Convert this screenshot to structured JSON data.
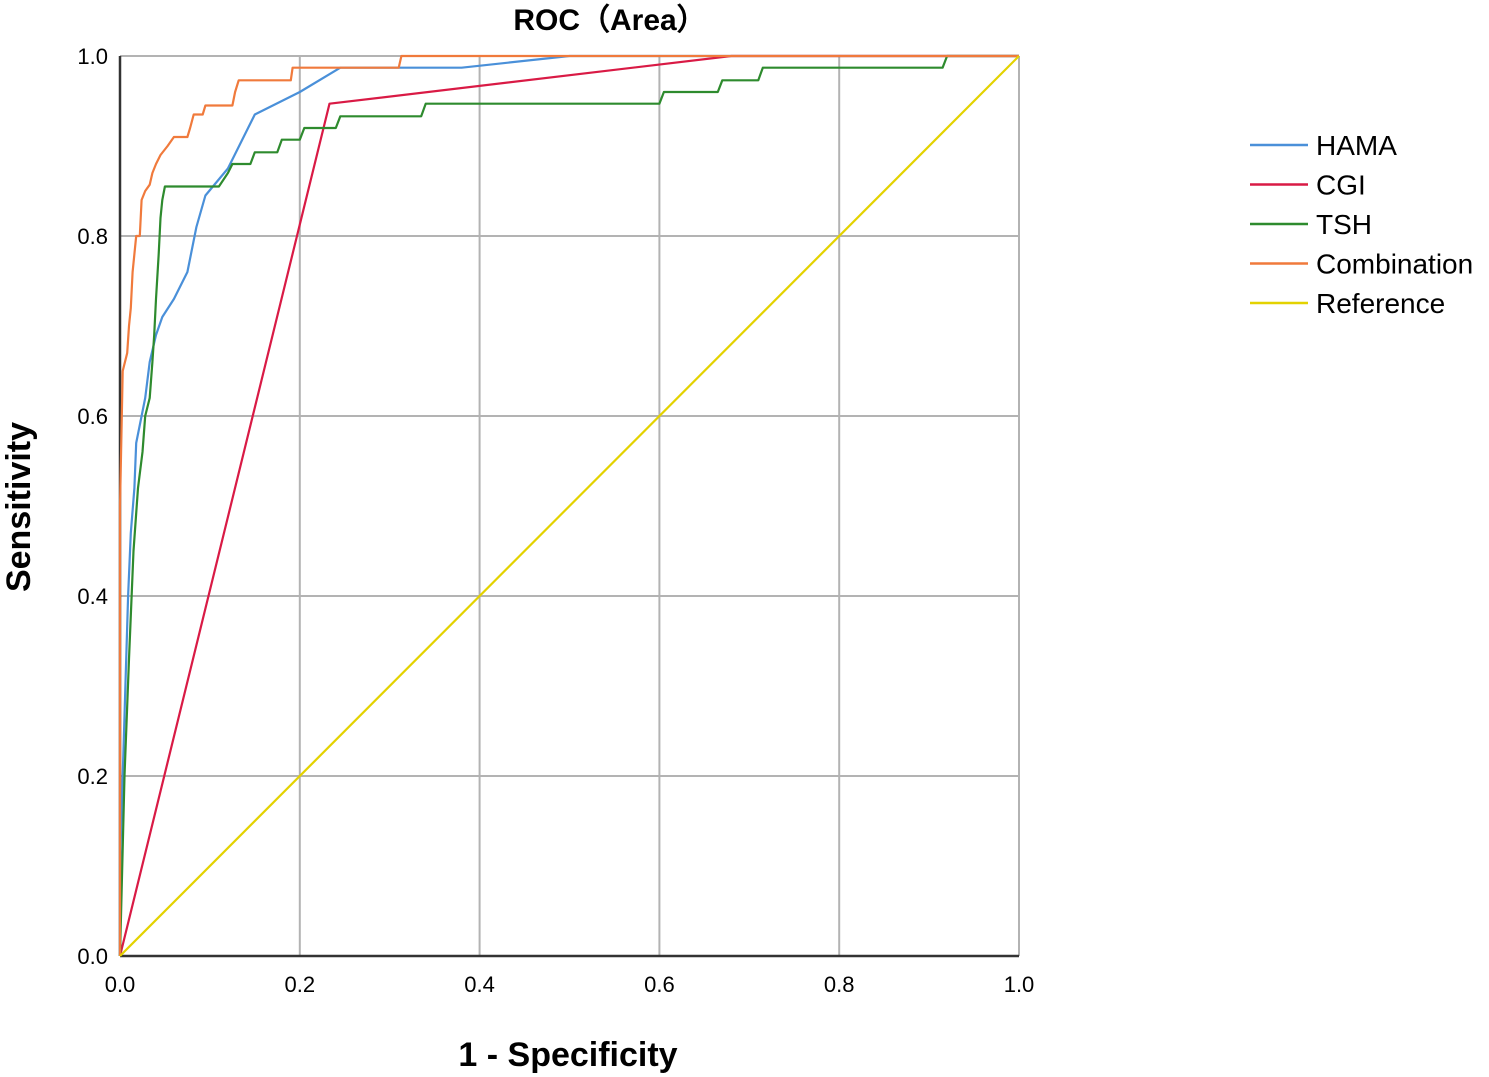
{
  "chart_data": {
    "type": "line",
    "title": "ROC（Area）",
    "xlabel": "1 - Specificity",
    "ylabel": "Sensitivity",
    "xlim": [
      0,
      1
    ],
    "ylim": [
      0,
      1
    ],
    "grid": true,
    "legend_position": "right",
    "x_ticks": [
      "0.0",
      "0.2",
      "0.4",
      "0.6",
      "0.8",
      "1.0"
    ],
    "y_ticks": [
      "0.0",
      "0.2",
      "0.4",
      "0.6",
      "0.8",
      "1.0"
    ],
    "series": [
      {
        "name": "HAMA",
        "color": "#4a90d9",
        "points": [
          [
            0,
            0
          ],
          [
            0,
            0.1
          ],
          [
            0.003,
            0.2
          ],
          [
            0.006,
            0.3
          ],
          [
            0.009,
            0.4
          ],
          [
            0.012,
            0.47
          ],
          [
            0.016,
            0.52
          ],
          [
            0.018,
            0.57
          ],
          [
            0.024,
            0.6
          ],
          [
            0.028,
            0.62
          ],
          [
            0.033,
            0.66
          ],
          [
            0.04,
            0.69
          ],
          [
            0.047,
            0.71
          ],
          [
            0.06,
            0.73
          ],
          [
            0.075,
            0.76
          ],
          [
            0.085,
            0.81
          ],
          [
            0.095,
            0.845
          ],
          [
            0.12,
            0.875
          ],
          [
            0.15,
            0.935
          ],
          [
            0.2,
            0.96
          ],
          [
            0.245,
            0.987
          ],
          [
            0.38,
            0.987
          ],
          [
            0.5,
            1.0
          ],
          [
            1.0,
            1.0
          ]
        ]
      },
      {
        "name": "CGI",
        "color": "#d91a45",
        "points": [
          [
            0,
            0
          ],
          [
            0.233,
            0.947
          ],
          [
            0.68,
            1.0
          ],
          [
            1.0,
            1.0
          ]
        ]
      },
      {
        "name": "TSH",
        "color": "#2e8b2e",
        "points": [
          [
            0,
            0
          ],
          [
            0.005,
            0.2
          ],
          [
            0.01,
            0.33
          ],
          [
            0.015,
            0.45
          ],
          [
            0.02,
            0.52
          ],
          [
            0.025,
            0.56
          ],
          [
            0.028,
            0.6
          ],
          [
            0.033,
            0.62
          ],
          [
            0.036,
            0.66
          ],
          [
            0.038,
            0.69
          ],
          [
            0.04,
            0.73
          ],
          [
            0.043,
            0.78
          ],
          [
            0.045,
            0.82
          ],
          [
            0.047,
            0.84
          ],
          [
            0.05,
            0.855
          ],
          [
            0.11,
            0.855
          ],
          [
            0.12,
            0.87
          ],
          [
            0.125,
            0.88
          ],
          [
            0.145,
            0.88
          ],
          [
            0.15,
            0.893
          ],
          [
            0.175,
            0.893
          ],
          [
            0.18,
            0.907
          ],
          [
            0.2,
            0.907
          ],
          [
            0.205,
            0.92
          ],
          [
            0.24,
            0.92
          ],
          [
            0.245,
            0.933
          ],
          [
            0.335,
            0.933
          ],
          [
            0.34,
            0.947
          ],
          [
            0.6,
            0.947
          ],
          [
            0.605,
            0.96
          ],
          [
            0.665,
            0.96
          ],
          [
            0.67,
            0.973
          ],
          [
            0.71,
            0.973
          ],
          [
            0.715,
            0.987
          ],
          [
            0.915,
            0.987
          ],
          [
            0.92,
            1.0
          ],
          [
            1.0,
            1.0
          ]
        ]
      },
      {
        "name": "Combination",
        "color": "#f07a3c",
        "points": [
          [
            0,
            0
          ],
          [
            0,
            0.5
          ],
          [
            0.003,
            0.65
          ],
          [
            0.008,
            0.67
          ],
          [
            0.01,
            0.7
          ],
          [
            0.012,
            0.72
          ],
          [
            0.014,
            0.76
          ],
          [
            0.018,
            0.8
          ],
          [
            0.022,
            0.8
          ],
          [
            0.024,
            0.84
          ],
          [
            0.028,
            0.85
          ],
          [
            0.033,
            0.857
          ],
          [
            0.036,
            0.87
          ],
          [
            0.04,
            0.88
          ],
          [
            0.045,
            0.89
          ],
          [
            0.053,
            0.9
          ],
          [
            0.06,
            0.91
          ],
          [
            0.075,
            0.91
          ],
          [
            0.078,
            0.92
          ],
          [
            0.082,
            0.935
          ],
          [
            0.092,
            0.935
          ],
          [
            0.095,
            0.945
          ],
          [
            0.125,
            0.945
          ],
          [
            0.128,
            0.96
          ],
          [
            0.132,
            0.973
          ],
          [
            0.19,
            0.973
          ],
          [
            0.192,
            0.987
          ],
          [
            0.31,
            0.987
          ],
          [
            0.313,
            1.0
          ],
          [
            1.0,
            1.0
          ]
        ]
      },
      {
        "name": "Reference",
        "color": "#e3d200",
        "points": [
          [
            0,
            0
          ],
          [
            1,
            1
          ]
        ]
      }
    ]
  }
}
